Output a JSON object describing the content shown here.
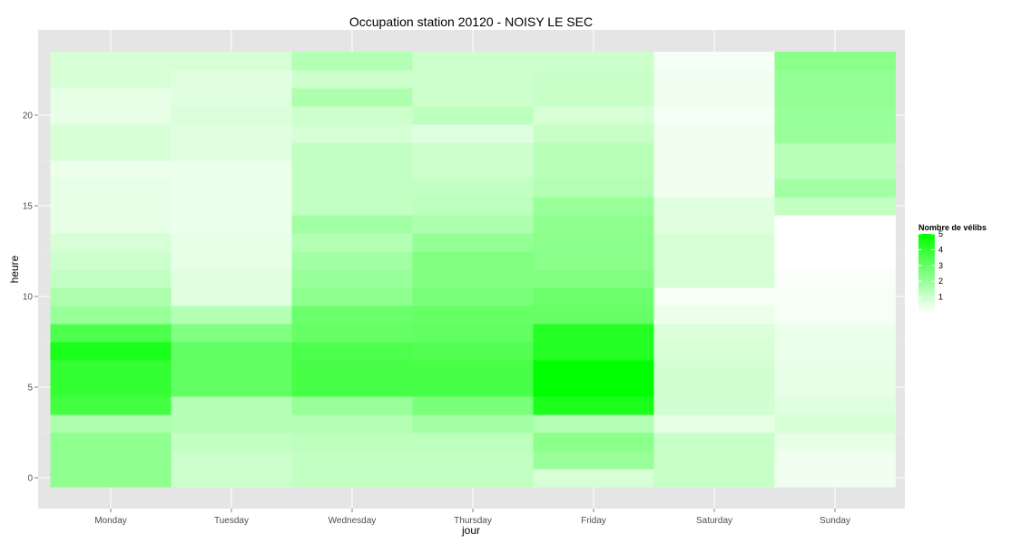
{
  "chart_data": {
    "type": "heatmap",
    "title": "Occupation station 20120 - NOISY LE SEC",
    "xlabel": "jour",
    "ylabel": "heure",
    "x_categories": [
      "Monday",
      "Tuesday",
      "Wednesday",
      "Thursday",
      "Friday",
      "Saturday",
      "Sunday"
    ],
    "y_values": [
      0,
      1,
      2,
      3,
      4,
      5,
      6,
      7,
      8,
      9,
      10,
      11,
      12,
      13,
      14,
      15,
      16,
      17,
      18,
      19,
      20,
      21,
      22,
      23
    ],
    "y_ticks": [
      0,
      5,
      10,
      15,
      20
    ],
    "ylim": [
      -0.5,
      23.5
    ],
    "grid": true,
    "legend": {
      "title": "Nombre de vélibs",
      "position": "right",
      "breaks": [
        1,
        2,
        3,
        4,
        5
      ],
      "range": [
        0,
        5
      ],
      "low_color": "#ffffff",
      "high_color": "#00ff00"
    },
    "values": [
      [
        2.2,
        1.0,
        1.2,
        1.2,
        0.8,
        1.1,
        0.3
      ],
      [
        2.2,
        1.0,
        1.2,
        1.2,
        2.0,
        1.1,
        0.3
      ],
      [
        2.2,
        1.2,
        1.3,
        1.3,
        2.3,
        1.1,
        0.5
      ],
      [
        1.6,
        1.5,
        1.5,
        1.8,
        1.5,
        0.5,
        0.8
      ],
      [
        3.7,
        1.5,
        2.0,
        2.6,
        4.5,
        0.9,
        0.6
      ],
      [
        4.0,
        3.1,
        3.6,
        3.6,
        5.0,
        0.9,
        0.5
      ],
      [
        4.0,
        3.1,
        3.6,
        3.6,
        5.0,
        0.9,
        0.5
      ],
      [
        4.5,
        3.1,
        3.5,
        3.4,
        4.3,
        0.8,
        0.4
      ],
      [
        3.5,
        2.5,
        3.0,
        3.1,
        4.3,
        0.7,
        0.4
      ],
      [
        2.0,
        1.5,
        2.9,
        3.0,
        3.0,
        0.4,
        0.2
      ],
      [
        1.6,
        0.6,
        2.2,
        2.6,
        2.9,
        0.2,
        0.2
      ],
      [
        1.2,
        0.6,
        2.0,
        2.5,
        2.5,
        0.8,
        0.1
      ],
      [
        1.0,
        0.5,
        1.8,
        2.5,
        2.3,
        0.8,
        0.0
      ],
      [
        0.8,
        0.5,
        1.5,
        2.1,
        2.3,
        0.8,
        0.0
      ],
      [
        0.5,
        0.4,
        1.8,
        1.6,
        2.2,
        0.6,
        0.0
      ],
      [
        0.5,
        0.4,
        1.2,
        1.3,
        2.0,
        0.6,
        1.2
      ],
      [
        0.5,
        0.4,
        1.2,
        1.2,
        1.5,
        0.3,
        1.8
      ],
      [
        0.4,
        0.4,
        1.2,
        1.0,
        1.4,
        0.3,
        1.4
      ],
      [
        0.8,
        0.6,
        1.2,
        1.0,
        1.4,
        0.3,
        1.4
      ],
      [
        0.8,
        0.6,
        0.8,
        0.6,
        1.1,
        0.3,
        2.0
      ],
      [
        0.5,
        0.7,
        1.0,
        1.3,
        0.8,
        0.2,
        2.0
      ],
      [
        0.5,
        0.6,
        1.6,
        1.0,
        1.1,
        0.3,
        2.1
      ],
      [
        0.8,
        0.6,
        1.0,
        1.0,
        1.1,
        0.3,
        2.1
      ],
      [
        0.8,
        0.8,
        1.5,
        1.0,
        1.0,
        0.2,
        2.3
      ]
    ]
  }
}
